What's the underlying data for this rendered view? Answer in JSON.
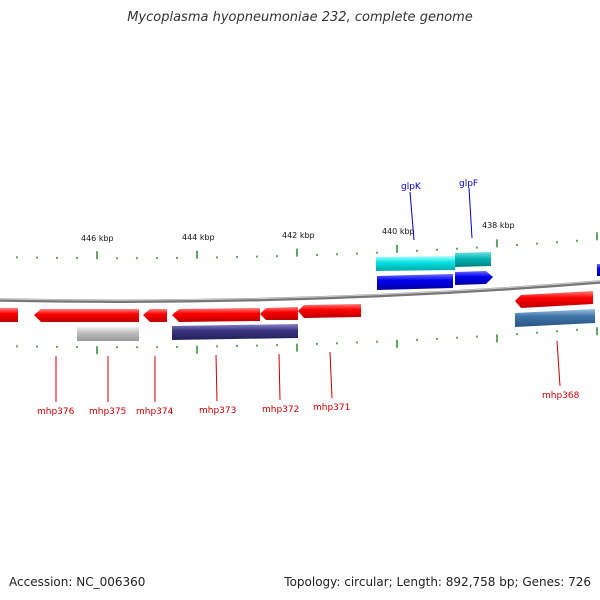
{
  "title": "Mycoplasma hyopneumoniae 232, complete genome",
  "footer": {
    "accession": "Accession: NC_006360",
    "summary": "Topology: circular; Length: 892,758 bp; Genes: 726"
  },
  "scale": {
    "unit": "kbp",
    "labels": [
      "446 kbp",
      "444 kbp",
      "442 kbp",
      "440 kbp",
      "438 kbp"
    ]
  },
  "colors": {
    "backbone": "#888888",
    "cds_red": "#ff0000",
    "tick_green": "#2a8a2a",
    "gene_label_red": "#cc0000",
    "gene_label_blue": "#0000cc",
    "cyan": "#00dddd",
    "teal": "#00b3b3",
    "blue": "#0000ee",
    "navy": "#3a3580",
    "steel": "#3f74a8",
    "grey": "#bbbbbb"
  },
  "gene_labels": {
    "top": [
      "glpK",
      "glpF"
    ],
    "bottom": [
      "mhp376",
      "mhp375",
      "mhp374",
      "mhp373",
      "mhp372",
      "mhp371",
      "mhp368"
    ]
  }
}
